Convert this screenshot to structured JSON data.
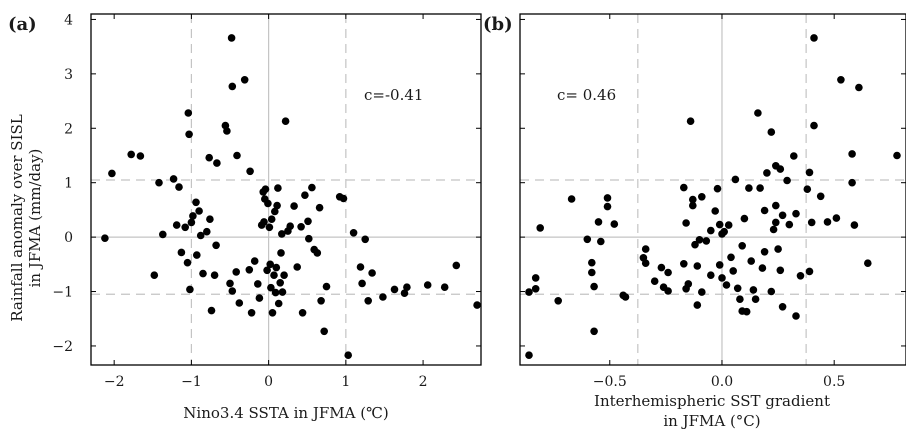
{
  "chart_data": [
    {
      "type": "scatter",
      "panel_label": "(a)",
      "xlabel": "Nino3.4 SSTA in JFMA (℃)",
      "ylabel": [
        "Rainfall anomaly over SISL",
        "in JFMA (mm/day)"
      ],
      "annotation": "c=-0.41",
      "xlim": [
        -2.3,
        2.75
      ],
      "ylim": [
        -2.35,
        4.1
      ],
      "xticks": [
        -2,
        -1,
        0,
        1,
        2
      ],
      "xtick_labels": [
        "−2",
        "−1",
        "0",
        "1",
        "2"
      ],
      "yticks": [
        -2,
        -1,
        0,
        1,
        2,
        3,
        4
      ],
      "ytick_labels": [
        "−2",
        "−1",
        "0",
        "1",
        "2",
        "3",
        "4"
      ],
      "zero_lines": {
        "x": 0,
        "y": 0
      },
      "dashed_lines": {
        "x": [
          -1,
          1
        ],
        "y": [
          -1.05,
          1.05
        ]
      },
      "points": [
        [
          -2.12,
          -0.02
        ],
        [
          -2.03,
          1.17
        ],
        [
          -1.78,
          1.52
        ],
        [
          -1.66,
          1.49
        ],
        [
          -1.48,
          -0.7
        ],
        [
          -1.42,
          1.0
        ],
        [
          -1.37,
          0.05
        ],
        [
          -1.23,
          1.07
        ],
        [
          -1.19,
          0.22
        ],
        [
          -1.16,
          0.92
        ],
        [
          -1.13,
          -0.28
        ],
        [
          -1.08,
          0.18
        ],
        [
          -1.05,
          -0.47
        ],
        [
          -1.04,
          2.28
        ],
        [
          -1.03,
          1.89
        ],
        [
          -1.02,
          -0.96
        ],
        [
          -1.0,
          0.27
        ],
        [
          -0.98,
          0.39
        ],
        [
          -0.94,
          0.64
        ],
        [
          -0.93,
          -0.33
        ],
        [
          -0.9,
          0.48
        ],
        [
          -0.88,
          0.03
        ],
        [
          -0.85,
          -0.67
        ],
        [
          -0.8,
          0.1
        ],
        [
          -0.77,
          1.46
        ],
        [
          -0.76,
          0.33
        ],
        [
          -0.74,
          -1.35
        ],
        [
          -0.7,
          -0.7
        ],
        [
          -0.68,
          -0.15
        ],
        [
          -0.67,
          1.36
        ],
        [
          -0.56,
          2.05
        ],
        [
          -0.54,
          1.95
        ],
        [
          -0.5,
          -0.85
        ],
        [
          -0.48,
          3.66
        ],
        [
          -0.47,
          2.77
        ],
        [
          -0.47,
          -0.99
        ],
        [
          -0.42,
          -0.64
        ],
        [
          -0.41,
          1.5
        ],
        [
          -0.38,
          -1.21
        ],
        [
          -0.31,
          2.89
        ],
        [
          -0.25,
          -0.6
        ],
        [
          -0.24,
          1.21
        ],
        [
          -0.22,
          -1.39
        ],
        [
          -0.18,
          -0.44
        ],
        [
          -0.14,
          -0.86
        ],
        [
          -0.12,
          -1.12
        ],
        [
          -0.09,
          0.22
        ],
        [
          -0.07,
          0.83
        ],
        [
          -0.06,
          0.28
        ],
        [
          -0.05,
          0.7
        ],
        [
          -0.04,
          0.88
        ],
        [
          -0.02,
          -0.61
        ],
        [
          -0.01,
          0.62
        ],
        [
          0.01,
          0.18
        ],
        [
          0.02,
          -0.5
        ],
        [
          0.03,
          -0.93
        ],
        [
          0.04,
          0.33
        ],
        [
          0.05,
          -1.39
        ],
        [
          0.07,
          -0.7
        ],
        [
          0.08,
          0.47
        ],
        [
          0.09,
          -1.02
        ],
        [
          0.1,
          -0.56
        ],
        [
          0.11,
          0.58
        ],
        [
          0.12,
          0.9
        ],
        [
          0.13,
          -1.22
        ],
        [
          0.15,
          -0.84
        ],
        [
          0.16,
          -0.29
        ],
        [
          0.17,
          0.06
        ],
        [
          0.18,
          -1.01
        ],
        [
          0.2,
          -0.7
        ],
        [
          0.22,
          2.13
        ],
        [
          0.25,
          0.11
        ],
        [
          0.28,
          0.2
        ],
        [
          0.33,
          0.57
        ],
        [
          0.37,
          -0.55
        ],
        [
          0.42,
          0.19
        ],
        [
          0.44,
          -1.39
        ],
        [
          0.47,
          0.77
        ],
        [
          0.51,
          0.29
        ],
        [
          0.52,
          -0.03
        ],
        [
          0.56,
          0.91
        ],
        [
          0.59,
          -0.23
        ],
        [
          0.63,
          -0.29
        ],
        [
          0.66,
          0.54
        ],
        [
          0.68,
          -1.17
        ],
        [
          0.72,
          -1.73
        ],
        [
          0.75,
          -0.91
        ],
        [
          0.92,
          0.74
        ],
        [
          0.97,
          0.71
        ],
        [
          1.03,
          -2.17
        ],
        [
          1.1,
          0.08
        ],
        [
          1.19,
          -0.55
        ],
        [
          1.21,
          -0.85
        ],
        [
          1.25,
          -0.04
        ],
        [
          1.29,
          -1.17
        ],
        [
          1.34,
          -0.66
        ],
        [
          1.48,
          -1.1
        ],
        [
          1.63,
          -0.96
        ],
        [
          1.76,
          -1.03
        ],
        [
          1.79,
          -0.92
        ],
        [
          2.06,
          -0.88
        ],
        [
          2.28,
          -0.92
        ],
        [
          2.43,
          -0.52
        ],
        [
          2.7,
          -1.25
        ]
      ]
    },
    {
      "type": "scatter",
      "panel_label": "(b)",
      "xlabel": [
        "Interhemispheric SST gradient",
        "in JFMA (°C)"
      ],
      "annotation": "c= 0.46",
      "xlim": [
        -0.9,
        0.82
      ],
      "ylim": [
        -2.35,
        4.1
      ],
      "xticks": [
        -0.5,
        0.0,
        0.5
      ],
      "xtick_labels": [
        "−0.5",
        "0.0",
        "0.5"
      ],
      "yticks": [
        -2,
        -1,
        0,
        1,
        2,
        3,
        4
      ],
      "zero_lines": {
        "x": 0,
        "y": 0
      },
      "dashed_lines": {
        "x": [
          -0.375,
          0.375
        ],
        "y": [
          -1.05,
          1.05
        ]
      },
      "points": [
        [
          -0.86,
          -2.17
        ],
        [
          -0.86,
          -1.01
        ],
        [
          -0.83,
          -0.75
        ],
        [
          -0.83,
          -0.95
        ],
        [
          -0.81,
          0.17
        ],
        [
          -0.73,
          -1.17
        ],
        [
          -0.67,
          0.7
        ],
        [
          -0.6,
          -0.04
        ],
        [
          -0.58,
          -0.47
        ],
        [
          -0.58,
          -0.65
        ],
        [
          -0.57,
          -1.73
        ],
        [
          -0.57,
          -0.91
        ],
        [
          -0.55,
          0.28
        ],
        [
          -0.54,
          -0.08
        ],
        [
          -0.51,
          0.72
        ],
        [
          -0.51,
          0.56
        ],
        [
          -0.48,
          0.24
        ],
        [
          -0.44,
          -1.07
        ],
        [
          -0.43,
          -1.1
        ],
        [
          -0.35,
          -0.38
        ],
        [
          -0.34,
          -0.48
        ],
        [
          -0.34,
          -0.22
        ],
        [
          -0.3,
          -0.81
        ],
        [
          -0.27,
          -0.56
        ],
        [
          -0.26,
          -0.92
        ],
        [
          -0.24,
          -0.99
        ],
        [
          -0.24,
          -0.65
        ],
        [
          -0.17,
          -0.49
        ],
        [
          -0.17,
          0.91
        ],
        [
          -0.16,
          -0.95
        ],
        [
          -0.16,
          0.26
        ],
        [
          -0.15,
          -0.86
        ],
        [
          -0.14,
          2.13
        ],
        [
          -0.13,
          0.58
        ],
        [
          -0.13,
          0.69
        ],
        [
          -0.12,
          -0.14
        ],
        [
          -0.11,
          -1.25
        ],
        [
          -0.11,
          -0.53
        ],
        [
          -0.1,
          -0.05
        ],
        [
          -0.09,
          -1.01
        ],
        [
          -0.09,
          0.74
        ],
        [
          -0.07,
          -0.07
        ],
        [
          -0.05,
          0.12
        ],
        [
          -0.05,
          -0.7
        ],
        [
          -0.03,
          0.48
        ],
        [
          -0.02,
          0.89
        ],
        [
          -0.01,
          0.23
        ],
        [
          -0.01,
          -0.51
        ],
        [
          0.0,
          -0.75
        ],
        [
          0.0,
          0.06
        ],
        [
          0.01,
          0.1
        ],
        [
          0.02,
          -0.88
        ],
        [
          0.03,
          0.22
        ],
        [
          0.04,
          -0.37
        ],
        [
          0.05,
          -0.62
        ],
        [
          0.06,
          1.06
        ],
        [
          0.07,
          -0.94
        ],
        [
          0.08,
          -1.14
        ],
        [
          0.09,
          -1.36
        ],
        [
          0.09,
          -0.16
        ],
        [
          0.1,
          0.34
        ],
        [
          0.11,
          -1.37
        ],
        [
          0.12,
          0.9
        ],
        [
          0.13,
          -0.44
        ],
        [
          0.14,
          -0.97
        ],
        [
          0.15,
          -1.14
        ],
        [
          0.16,
          2.28
        ],
        [
          0.17,
          0.9
        ],
        [
          0.18,
          -0.57
        ],
        [
          0.19,
          -0.27
        ],
        [
          0.19,
          0.49
        ],
        [
          0.2,
          1.18
        ],
        [
          0.22,
          -1.0
        ],
        [
          0.22,
          1.93
        ],
        [
          0.23,
          0.14
        ],
        [
          0.24,
          0.58
        ],
        [
          0.24,
          0.27
        ],
        [
          0.24,
          1.31
        ],
        [
          0.25,
          -0.22
        ],
        [
          0.26,
          1.25
        ],
        [
          0.26,
          -0.61
        ],
        [
          0.27,
          -1.28
        ],
        [
          0.27,
          0.4
        ],
        [
          0.29,
          1.04
        ],
        [
          0.3,
          0.23
        ],
        [
          0.32,
          1.49
        ],
        [
          0.33,
          -1.45
        ],
        [
          0.33,
          0.43
        ],
        [
          0.35,
          -0.71
        ],
        [
          0.38,
          0.88
        ],
        [
          0.39,
          -0.63
        ],
        [
          0.39,
          1.19
        ],
        [
          0.4,
          0.27
        ],
        [
          0.41,
          3.66
        ],
        [
          0.41,
          2.05
        ],
        [
          0.44,
          0.75
        ],
        [
          0.47,
          0.28
        ],
        [
          0.51,
          0.35
        ],
        [
          0.53,
          2.89
        ],
        [
          0.58,
          1.53
        ],
        [
          0.58,
          1.0
        ],
        [
          0.59,
          0.22
        ],
        [
          0.61,
          2.75
        ],
        [
          0.65,
          -0.48
        ],
        [
          0.78,
          1.5
        ]
      ]
    }
  ]
}
